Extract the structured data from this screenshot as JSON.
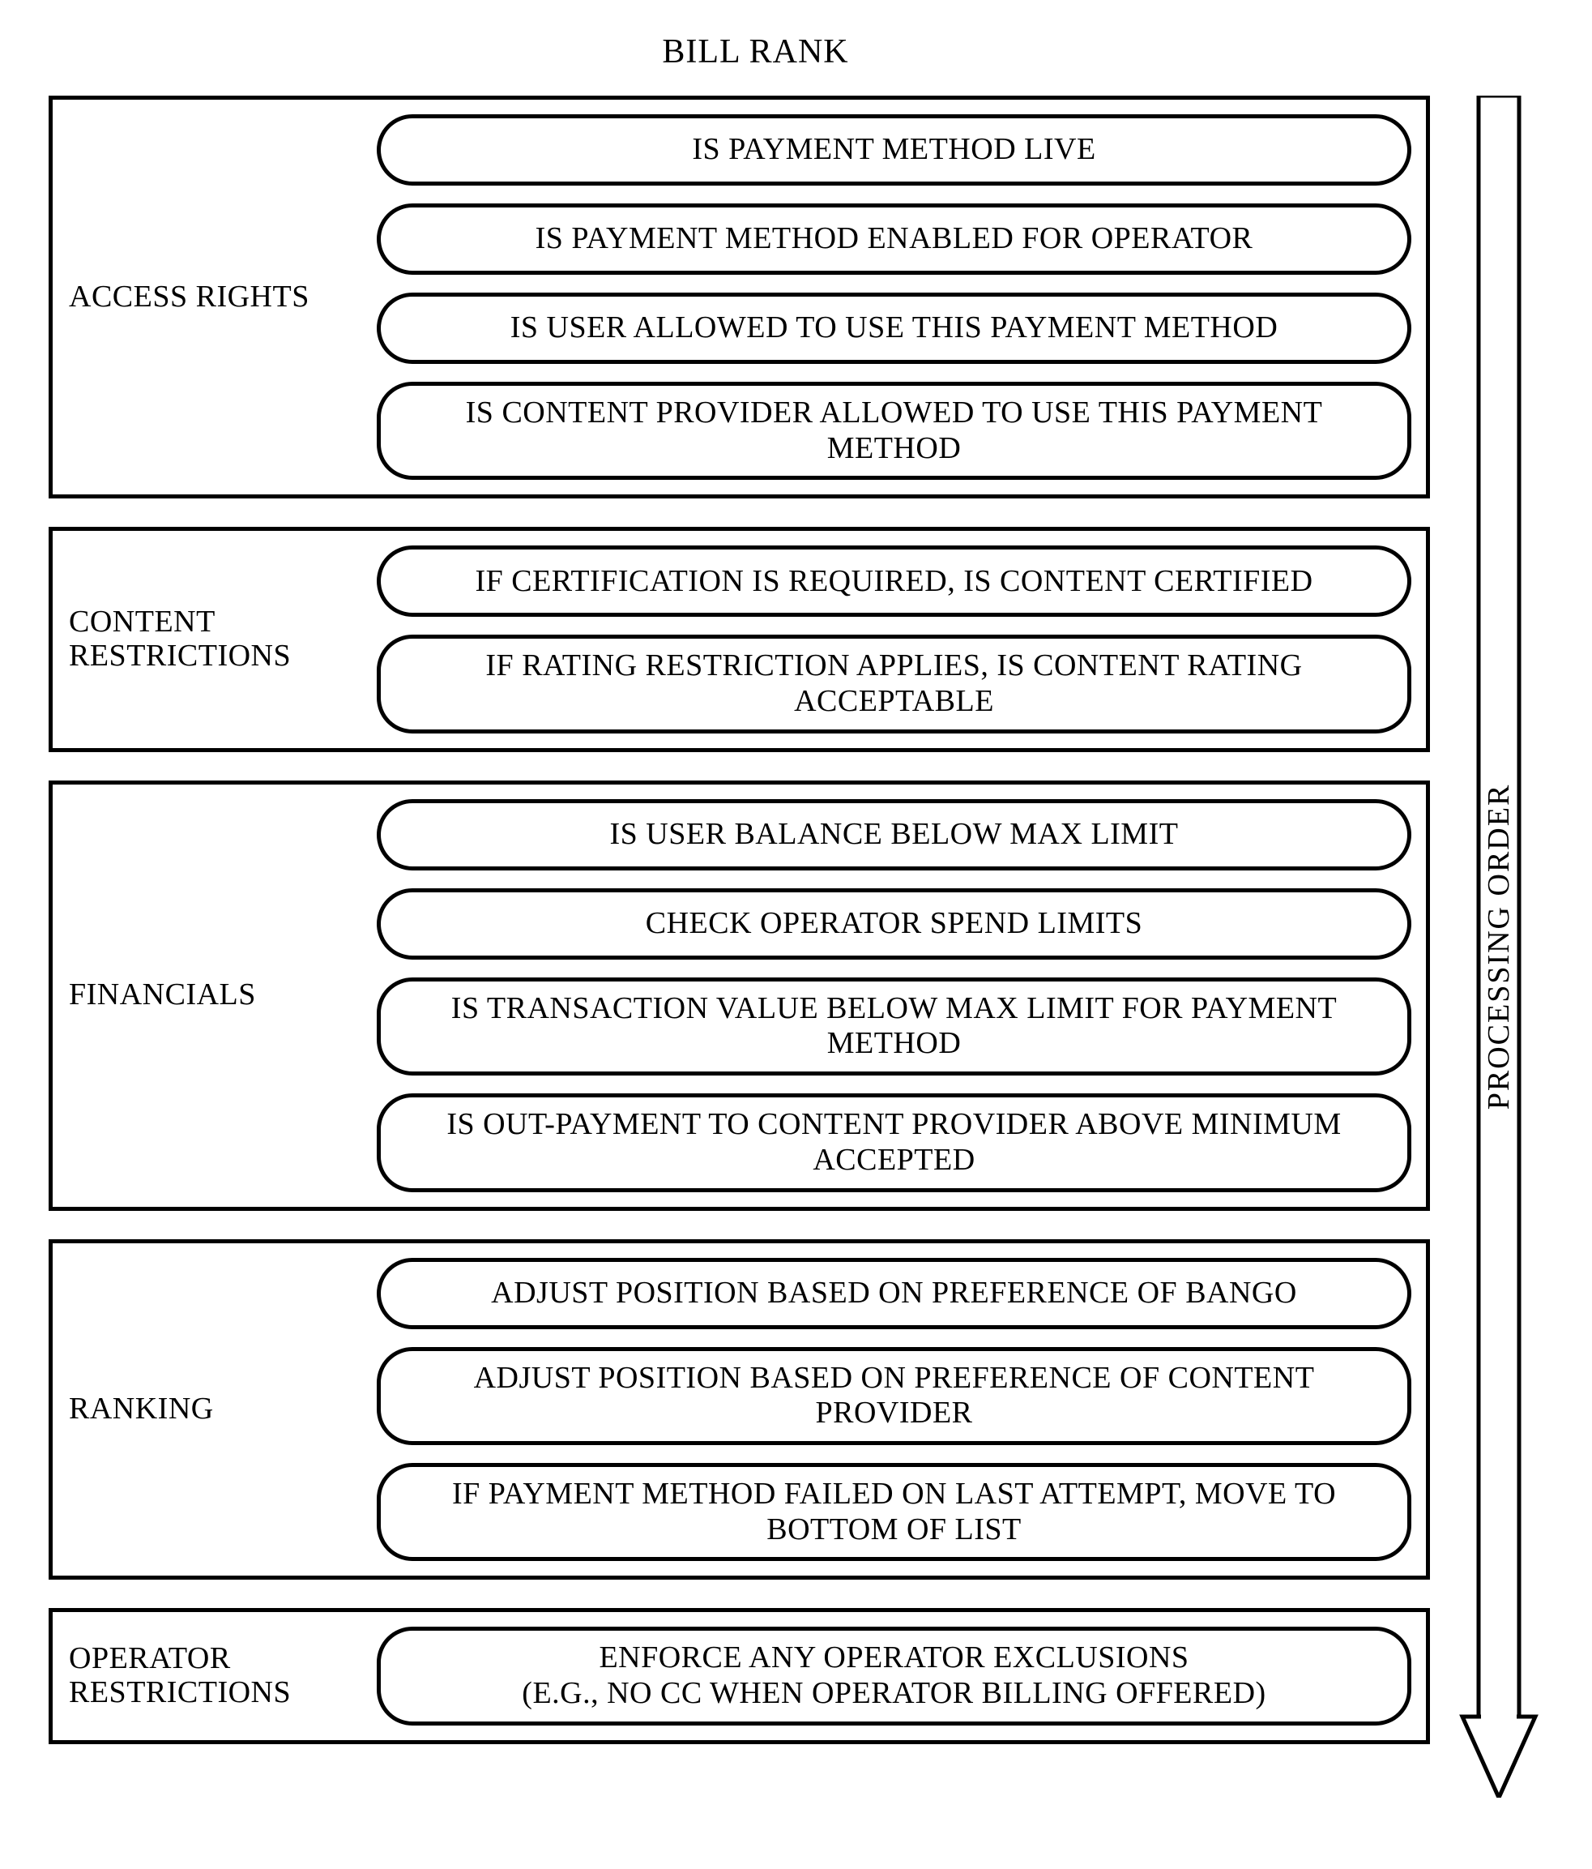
{
  "title": "BILL RANK",
  "arrow_label": "PROCESSING ORDER",
  "colors": {
    "stroke": "#000000",
    "background": "#ffffff"
  },
  "stroke_width": 5,
  "pill_radius": 44,
  "font_family": "Times New Roman",
  "title_fontsize": 42,
  "label_fontsize": 38,
  "item_fontsize": 38,
  "sections": [
    {
      "label": "ACCESS RIGHTS",
      "items": [
        "IS PAYMENT METHOD LIVE",
        "IS PAYMENT METHOD ENABLED FOR OPERATOR",
        "IS USER ALLOWED TO USE THIS PAYMENT METHOD",
        "IS CONTENT PROVIDER ALLOWED TO USE THIS PAYMENT METHOD"
      ]
    },
    {
      "label": "CONTENT RESTRICTIONS",
      "items": [
        "IF CERTIFICATION IS REQUIRED, IS CONTENT CERTIFIED",
        "IF RATING RESTRICTION APPLIES, IS CONTENT RATING ACCEPTABLE"
      ]
    },
    {
      "label": "FINANCIALS",
      "items": [
        "IS USER BALANCE BELOW MAX LIMIT",
        "CHECK OPERATOR SPEND LIMITS",
        "IS TRANSACTION VALUE BELOW MAX LIMIT FOR PAYMENT METHOD",
        "IS OUT-PAYMENT TO CONTENT PROVIDER ABOVE MINIMUM ACCEPTED"
      ]
    },
    {
      "label": "RANKING",
      "items": [
        "ADJUST POSITION BASED ON PREFERENCE OF BANGO",
        "ADJUST POSITION BASED ON PREFERENCE OF CONTENT PROVIDER",
        "IF PAYMENT METHOD FAILED ON LAST ATTEMPT, MOVE TO BOTTOM OF LIST"
      ]
    },
    {
      "label": "OPERATOR RESTRICTIONS",
      "items": [
        "ENFORCE ANY OPERATOR EXCLUSIONS\n(E.G., NO CC WHEN OPERATOR BILLING OFFERED)"
      ]
    }
  ]
}
